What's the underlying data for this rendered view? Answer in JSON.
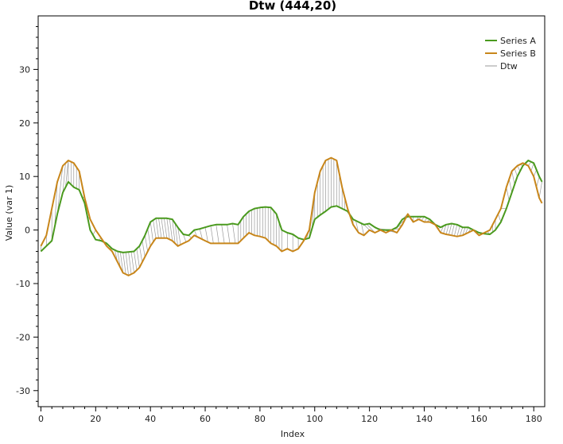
{
  "chart_data": {
    "type": "line",
    "title": "Dtw (444,20)",
    "xlabel": "Index",
    "ylabel": "Value (var 1)",
    "xlim": [
      -1,
      184
    ],
    "ylim": [
      -33,
      40
    ],
    "x_ticks": [
      0,
      20,
      40,
      60,
      80,
      100,
      120,
      140,
      160,
      180
    ],
    "y_ticks": [
      -30,
      -20,
      -10,
      0,
      10,
      20,
      30
    ],
    "legend_position": "top-right",
    "grid": false,
    "series": [
      {
        "name": "Series A",
        "color": "#4a9a1e",
        "points": [
          [
            0,
            -4
          ],
          [
            2,
            -3
          ],
          [
            4,
            -2
          ],
          [
            6,
            3
          ],
          [
            8,
            7
          ],
          [
            10,
            9
          ],
          [
            12,
            8
          ],
          [
            14,
            7.5
          ],
          [
            16,
            5
          ],
          [
            18,
            0
          ],
          [
            20,
            -1.8
          ],
          [
            22,
            -2
          ],
          [
            24,
            -2.5
          ],
          [
            26,
            -3.5
          ],
          [
            28,
            -4
          ],
          [
            30,
            -4.2
          ],
          [
            32,
            -4.1
          ],
          [
            34,
            -4
          ],
          [
            36,
            -3
          ],
          [
            38,
            -1
          ],
          [
            40,
            1.5
          ],
          [
            42,
            2.2
          ],
          [
            44,
            2.2
          ],
          [
            46,
            2.2
          ],
          [
            48,
            2
          ],
          [
            50,
            0.5
          ],
          [
            52,
            -0.8
          ],
          [
            54,
            -1
          ],
          [
            56,
            0
          ],
          [
            58,
            0.2
          ],
          [
            60,
            0.5
          ],
          [
            62,
            0.8
          ],
          [
            64,
            1
          ],
          [
            66,
            1
          ],
          [
            68,
            1
          ],
          [
            70,
            1.2
          ],
          [
            72,
            1
          ],
          [
            74,
            2.5
          ],
          [
            76,
            3.5
          ],
          [
            78,
            4
          ],
          [
            80,
            4.2
          ],
          [
            82,
            4.3
          ],
          [
            84,
            4.2
          ],
          [
            86,
            3
          ],
          [
            88,
            0
          ],
          [
            90,
            -0.5
          ],
          [
            92,
            -0.8
          ],
          [
            94,
            -1.5
          ],
          [
            96,
            -1.8
          ],
          [
            98,
            -1.5
          ],
          [
            100,
            2
          ],
          [
            102,
            2.8
          ],
          [
            104,
            3.5
          ],
          [
            106,
            4.3
          ],
          [
            108,
            4.5
          ],
          [
            110,
            4
          ],
          [
            112,
            3.5
          ],
          [
            114,
            2
          ],
          [
            116,
            1.5
          ],
          [
            118,
            1
          ],
          [
            120,
            1.2
          ],
          [
            122,
            0.5
          ],
          [
            124,
            0
          ],
          [
            126,
            0
          ],
          [
            128,
            0
          ],
          [
            130,
            0.5
          ],
          [
            132,
            2
          ],
          [
            134,
            2.5
          ],
          [
            136,
            2.5
          ],
          [
            138,
            2.5
          ],
          [
            140,
            2.5
          ],
          [
            142,
            2
          ],
          [
            144,
            1
          ],
          [
            146,
            0.5
          ],
          [
            148,
            1
          ],
          [
            150,
            1.2
          ],
          [
            152,
            1
          ],
          [
            154,
            0.5
          ],
          [
            156,
            0.5
          ],
          [
            158,
            0
          ],
          [
            160,
            -0.5
          ],
          [
            162,
            -0.7
          ],
          [
            164,
            -0.8
          ],
          [
            166,
            0
          ],
          [
            168,
            1.5
          ],
          [
            170,
            4
          ],
          [
            172,
            7
          ],
          [
            174,
            10
          ],
          [
            176,
            12
          ],
          [
            178,
            13
          ],
          [
            180,
            12.5
          ],
          [
            182,
            10
          ],
          [
            183,
            9
          ]
        ]
      },
      {
        "name": "Series B",
        "color": "#c8861a",
        "points": [
          [
            0,
            -3
          ],
          [
            2,
            -1
          ],
          [
            4,
            4
          ],
          [
            6,
            9
          ],
          [
            8,
            12
          ],
          [
            10,
            13
          ],
          [
            12,
            12.5
          ],
          [
            14,
            11
          ],
          [
            16,
            6
          ],
          [
            18,
            2
          ],
          [
            20,
            0
          ],
          [
            22,
            -1.5
          ],
          [
            24,
            -3
          ],
          [
            26,
            -4
          ],
          [
            28,
            -6
          ],
          [
            30,
            -8
          ],
          [
            32,
            -8.5
          ],
          [
            34,
            -8
          ],
          [
            36,
            -7
          ],
          [
            38,
            -5
          ],
          [
            40,
            -3
          ],
          [
            42,
            -1.5
          ],
          [
            44,
            -1.5
          ],
          [
            46,
            -1.5
          ],
          [
            48,
            -2
          ],
          [
            50,
            -3
          ],
          [
            52,
            -2.5
          ],
          [
            54,
            -2
          ],
          [
            56,
            -1
          ],
          [
            58,
            -1.5
          ],
          [
            60,
            -2
          ],
          [
            62,
            -2.5
          ],
          [
            64,
            -2.5
          ],
          [
            66,
            -2.5
          ],
          [
            68,
            -2.5
          ],
          [
            70,
            -2.5
          ],
          [
            72,
            -2.5
          ],
          [
            74,
            -1.5
          ],
          [
            76,
            -0.5
          ],
          [
            78,
            -1
          ],
          [
            80,
            -1.2
          ],
          [
            82,
            -1.5
          ],
          [
            84,
            -2.5
          ],
          [
            86,
            -3
          ],
          [
            88,
            -4
          ],
          [
            90,
            -3.5
          ],
          [
            92,
            -4
          ],
          [
            94,
            -3.5
          ],
          [
            96,
            -2
          ],
          [
            98,
            0
          ],
          [
            100,
            7
          ],
          [
            102,
            11
          ],
          [
            104,
            13
          ],
          [
            106,
            13.5
          ],
          [
            108,
            13
          ],
          [
            110,
            8
          ],
          [
            112,
            4
          ],
          [
            114,
            1
          ],
          [
            116,
            -0.5
          ],
          [
            118,
            -1
          ],
          [
            120,
            0
          ],
          [
            122,
            -0.5
          ],
          [
            124,
            0
          ],
          [
            126,
            -0.5
          ],
          [
            128,
            0
          ],
          [
            130,
            -0.5
          ],
          [
            132,
            1
          ],
          [
            134,
            3
          ],
          [
            136,
            1.5
          ],
          [
            138,
            2
          ],
          [
            140,
            1.5
          ],
          [
            142,
            1.5
          ],
          [
            144,
            1
          ],
          [
            146,
            -0.5
          ],
          [
            148,
            -0.8
          ],
          [
            150,
            -1
          ],
          [
            152,
            -1.2
          ],
          [
            154,
            -1
          ],
          [
            156,
            -0.5
          ],
          [
            158,
            0
          ],
          [
            160,
            -1
          ],
          [
            162,
            -0.5
          ],
          [
            164,
            0
          ],
          [
            166,
            2
          ],
          [
            168,
            4
          ],
          [
            170,
            8
          ],
          [
            172,
            11
          ],
          [
            174,
            12
          ],
          [
            176,
            12.5
          ],
          [
            178,
            12
          ],
          [
            180,
            10
          ],
          [
            182,
            6
          ],
          [
            183,
            5
          ]
        ]
      }
    ],
    "dtw_label": "Dtw",
    "dtw_color": "#9a9a9a",
    "dtw_pairs": [
      [
        0,
        0
      ],
      [
        2,
        2
      ],
      [
        4,
        4
      ],
      [
        5,
        6
      ],
      [
        6,
        8
      ],
      [
        8,
        9
      ],
      [
        9,
        10
      ],
      [
        10,
        10
      ],
      [
        11,
        11
      ],
      [
        12,
        12
      ],
      [
        13,
        13
      ],
      [
        14,
        14
      ],
      [
        15,
        16
      ],
      [
        17,
        18
      ],
      [
        19,
        20
      ],
      [
        21,
        22
      ],
      [
        23,
        24
      ],
      [
        25,
        26
      ],
      [
        27,
        28
      ],
      [
        28,
        29
      ],
      [
        29,
        30
      ],
      [
        30,
        31
      ],
      [
        31,
        32
      ],
      [
        32,
        33
      ],
      [
        33,
        34
      ],
      [
        34,
        35
      ],
      [
        35,
        36
      ],
      [
        36,
        37
      ],
      [
        37,
        38
      ],
      [
        38,
        39
      ],
      [
        39,
        40
      ],
      [
        40,
        41
      ],
      [
        41,
        42
      ],
      [
        42,
        43
      ],
      [
        43,
        44
      ],
      [
        44,
        45
      ],
      [
        45,
        46
      ],
      [
        46,
        47
      ],
      [
        47,
        48
      ],
      [
        48,
        49
      ],
      [
        49,
        50
      ],
      [
        50,
        51
      ],
      [
        52,
        53
      ],
      [
        54,
        55
      ],
      [
        56,
        57
      ],
      [
        58,
        59
      ],
      [
        60,
        61
      ],
      [
        62,
        63
      ],
      [
        64,
        65
      ],
      [
        66,
        67
      ],
      [
        68,
        69
      ],
      [
        70,
        71
      ],
      [
        72,
        72
      ],
      [
        73,
        73
      ],
      [
        74,
        74
      ],
      [
        75,
        75
      ],
      [
        76,
        76
      ],
      [
        77,
        77
      ],
      [
        78,
        78
      ],
      [
        79,
        79
      ],
      [
        80,
        80
      ],
      [
        81,
        81
      ],
      [
        82,
        82
      ],
      [
        83,
        83
      ],
      [
        84,
        84
      ],
      [
        85,
        85
      ],
      [
        86,
        86
      ],
      [
        87,
        87
      ],
      [
        88,
        88
      ],
      [
        90,
        90
      ],
      [
        92,
        92
      ],
      [
        94,
        94
      ],
      [
        96,
        96
      ],
      [
        97,
        98
      ],
      [
        98,
        99
      ],
      [
        99,
        100
      ],
      [
        100,
        100
      ],
      [
        101,
        101
      ],
      [
        102,
        102
      ],
      [
        103,
        103
      ],
      [
        104,
        104
      ],
      [
        105,
        105
      ],
      [
        106,
        106
      ],
      [
        107,
        107
      ],
      [
        108,
        108
      ],
      [
        109,
        109
      ],
      [
        110,
        110
      ],
      [
        111,
        111
      ],
      [
        112,
        112
      ],
      [
        113,
        113
      ],
      [
        114,
        114
      ],
      [
        115,
        116
      ],
      [
        117,
        118
      ],
      [
        118,
        120
      ],
      [
        119,
        122
      ],
      [
        120,
        124
      ],
      [
        121,
        126
      ],
      [
        122,
        127
      ],
      [
        123,
        128
      ],
      [
        124,
        129
      ],
      [
        125,
        130
      ],
      [
        126,
        131
      ],
      [
        128,
        132
      ],
      [
        130,
        133
      ],
      [
        132,
        134
      ],
      [
        134,
        135
      ],
      [
        136,
        136
      ],
      [
        138,
        137
      ],
      [
        139,
        138
      ],
      [
        140,
        139
      ],
      [
        141,
        140
      ],
      [
        142,
        141
      ],
      [
        143,
        142
      ],
      [
        144,
        143
      ],
      [
        145,
        144
      ],
      [
        146,
        145
      ],
      [
        147,
        146
      ],
      [
        148,
        147
      ],
      [
        149,
        148
      ],
      [
        150,
        149
      ],
      [
        151,
        150
      ],
      [
        152,
        151
      ],
      [
        153,
        152
      ],
      [
        154,
        153
      ],
      [
        155,
        154
      ],
      [
        156,
        155
      ],
      [
        157,
        156
      ],
      [
        158,
        157
      ],
      [
        159,
        158
      ],
      [
        160,
        159
      ],
      [
        161,
        160
      ],
      [
        162,
        161
      ],
      [
        163,
        162
      ],
      [
        164,
        163
      ],
      [
        165,
        165
      ],
      [
        166,
        166
      ],
      [
        168,
        167
      ],
      [
        170,
        168
      ],
      [
        171,
        170
      ],
      [
        172,
        171
      ],
      [
        173,
        172
      ],
      [
        174,
        173
      ],
      [
        175,
        174
      ],
      [
        176,
        175
      ],
      [
        177,
        176
      ],
      [
        178,
        177
      ],
      [
        179,
        178
      ],
      [
        180,
        179
      ],
      [
        181,
        180
      ],
      [
        182,
        181
      ],
      [
        183,
        182
      ]
    ]
  }
}
